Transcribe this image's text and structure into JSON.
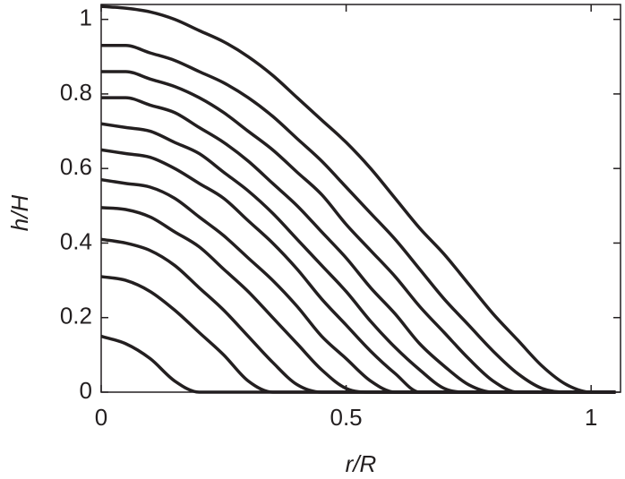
{
  "chart_data": {
    "type": "line",
    "x_label": "r/R",
    "y_label": "h/H",
    "x": [
      0,
      0.05,
      0.1,
      0.15,
      0.2,
      0.25,
      0.3,
      0.35,
      0.4,
      0.45,
      0.5,
      0.55,
      0.6,
      0.65,
      0.7,
      0.75,
      0.8,
      0.85,
      0.9,
      0.95,
      1.0,
      1.05
    ],
    "series": [
      {
        "color": "#231f20",
        "values": [
          0.15,
          0.13,
          0.09,
          0.03,
          0,
          0,
          0,
          0,
          0,
          0,
          0,
          0,
          0,
          0,
          0,
          0,
          0,
          0,
          0,
          0,
          0,
          0
        ]
      },
      {
        "color": "#231f20",
        "values": [
          0.31,
          0.3,
          0.27,
          0.22,
          0.16,
          0.1,
          0.03,
          0,
          0,
          0,
          0,
          0,
          0,
          0,
          0,
          0,
          0,
          0,
          0,
          0,
          0,
          0
        ]
      },
      {
        "color": "#231f20",
        "values": [
          0.41,
          0.4,
          0.38,
          0.34,
          0.28,
          0.22,
          0.15,
          0.08,
          0.02,
          0,
          0,
          0,
          0,
          0,
          0,
          0,
          0,
          0,
          0,
          0,
          0,
          0
        ]
      },
      {
        "color": "#231f20",
        "values": [
          0.495,
          0.49,
          0.47,
          0.43,
          0.39,
          0.33,
          0.27,
          0.2,
          0.13,
          0.06,
          0.01,
          0,
          0,
          0,
          0,
          0,
          0,
          0,
          0,
          0,
          0,
          0
        ]
      },
      {
        "color": "#231f20",
        "values": [
          0.57,
          0.56,
          0.55,
          0.52,
          0.47,
          0.42,
          0.36,
          0.3,
          0.23,
          0.15,
          0.09,
          0.03,
          0,
          0,
          0,
          0,
          0,
          0,
          0,
          0,
          0,
          0
        ]
      },
      {
        "color": "#231f20",
        "values": [
          0.65,
          0.64,
          0.63,
          0.6,
          0.56,
          0.52,
          0.46,
          0.4,
          0.33,
          0.25,
          0.18,
          0.11,
          0.05,
          0,
          0,
          0,
          0,
          0,
          0,
          0,
          0,
          0
        ]
      },
      {
        "color": "#231f20",
        "values": [
          0.72,
          0.71,
          0.7,
          0.67,
          0.64,
          0.59,
          0.54,
          0.48,
          0.41,
          0.34,
          0.27,
          0.19,
          0.12,
          0.06,
          0.01,
          0,
          0,
          0,
          0,
          0,
          0,
          0
        ]
      },
      {
        "color": "#231f20",
        "values": [
          0.79,
          0.79,
          0.77,
          0.75,
          0.71,
          0.67,
          0.62,
          0.56,
          0.5,
          0.43,
          0.36,
          0.28,
          0.21,
          0.13,
          0.07,
          0.02,
          0,
          0,
          0,
          0,
          0,
          0
        ]
      },
      {
        "color": "#231f20",
        "values": [
          0.86,
          0.86,
          0.84,
          0.82,
          0.79,
          0.75,
          0.7,
          0.65,
          0.59,
          0.53,
          0.45,
          0.38,
          0.31,
          0.23,
          0.16,
          0.09,
          0.03,
          0,
          0,
          0,
          0,
          0
        ]
      },
      {
        "color": "#231f20",
        "values": [
          0.93,
          0.93,
          0.91,
          0.89,
          0.86,
          0.83,
          0.79,
          0.74,
          0.68,
          0.62,
          0.55,
          0.48,
          0.41,
          0.33,
          0.25,
          0.18,
          0.11,
          0.05,
          0.01,
          0,
          0,
          0
        ]
      },
      {
        "color": "#231f20",
        "values": [
          1.035,
          1.03,
          1.02,
          1.0,
          0.97,
          0.94,
          0.9,
          0.85,
          0.79,
          0.73,
          0.67,
          0.6,
          0.52,
          0.44,
          0.37,
          0.29,
          0.21,
          0.14,
          0.07,
          0.02,
          0,
          0
        ]
      }
    ],
    "xlim": [
      0,
      1.06
    ],
    "ylim": [
      0,
      1.04
    ],
    "xticks": [
      0,
      0.5,
      1
    ],
    "yticks": [
      0,
      0.2,
      0.4,
      0.6,
      0.8,
      1
    ],
    "grid": false
  }
}
